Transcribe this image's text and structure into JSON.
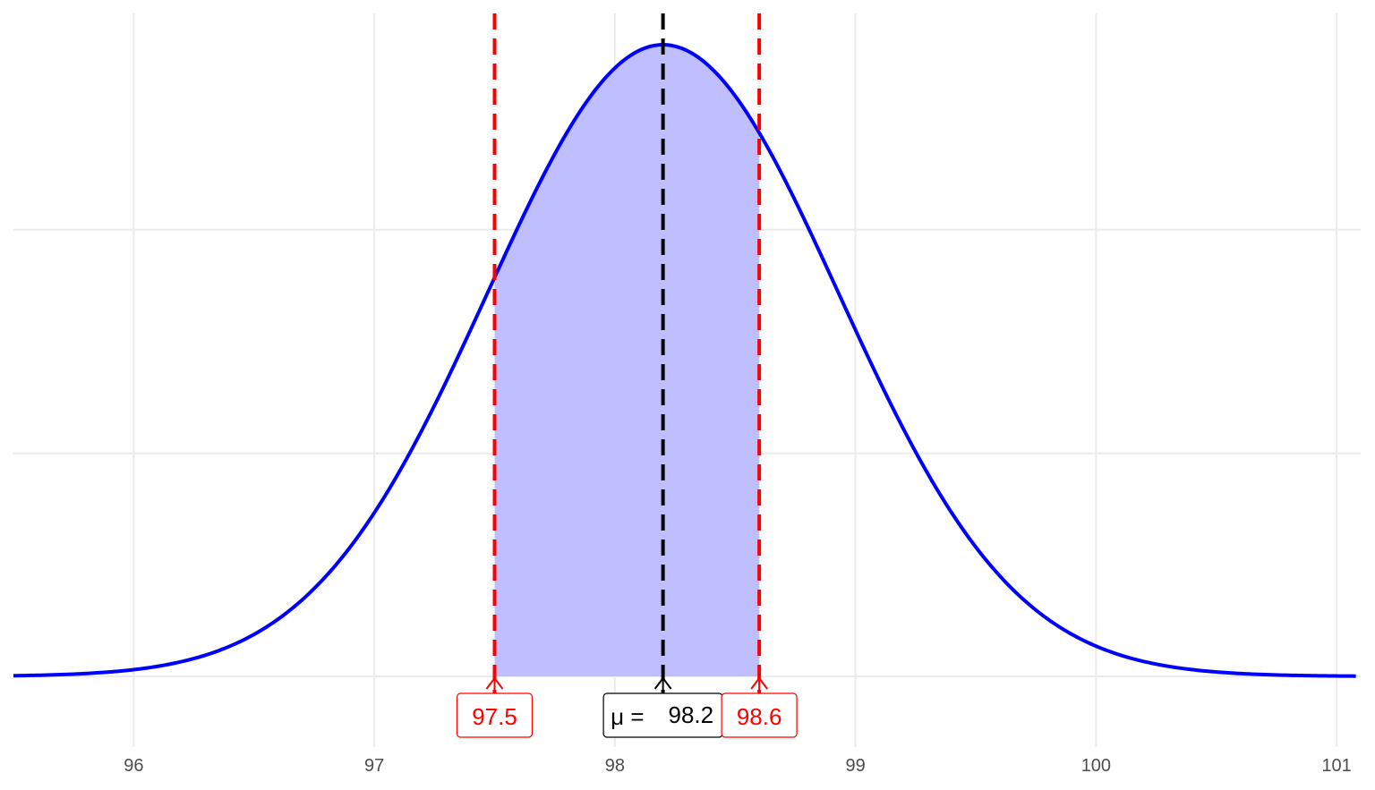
{
  "chart_data": {
    "type": "area",
    "title": "",
    "xlabel": "",
    "ylabel": "",
    "xlim": [
      95.5,
      101.1
    ],
    "x_ticks": [
      "96",
      "97",
      "98",
      "99",
      "100",
      "101"
    ],
    "distribution": {
      "family": "normal",
      "mean": 98.2,
      "sd": 0.73
    },
    "shaded_interval": [
      97.5,
      98.6
    ],
    "y_grid_fractions": [
      0,
      0.363,
      0.727
    ],
    "grid": true,
    "reference_lines": [
      {
        "value": 97.5,
        "label": "97.5",
        "color": "#ff0000"
      },
      {
        "value": 98.2,
        "label_prefix": "μ =",
        "label": "98.2",
        "color": "#000000"
      },
      {
        "value": 98.6,
        "label": "98.6",
        "color": "#ff0000"
      }
    ],
    "curve_color": "#0000ff",
    "fill_color": "#bfbfff"
  }
}
